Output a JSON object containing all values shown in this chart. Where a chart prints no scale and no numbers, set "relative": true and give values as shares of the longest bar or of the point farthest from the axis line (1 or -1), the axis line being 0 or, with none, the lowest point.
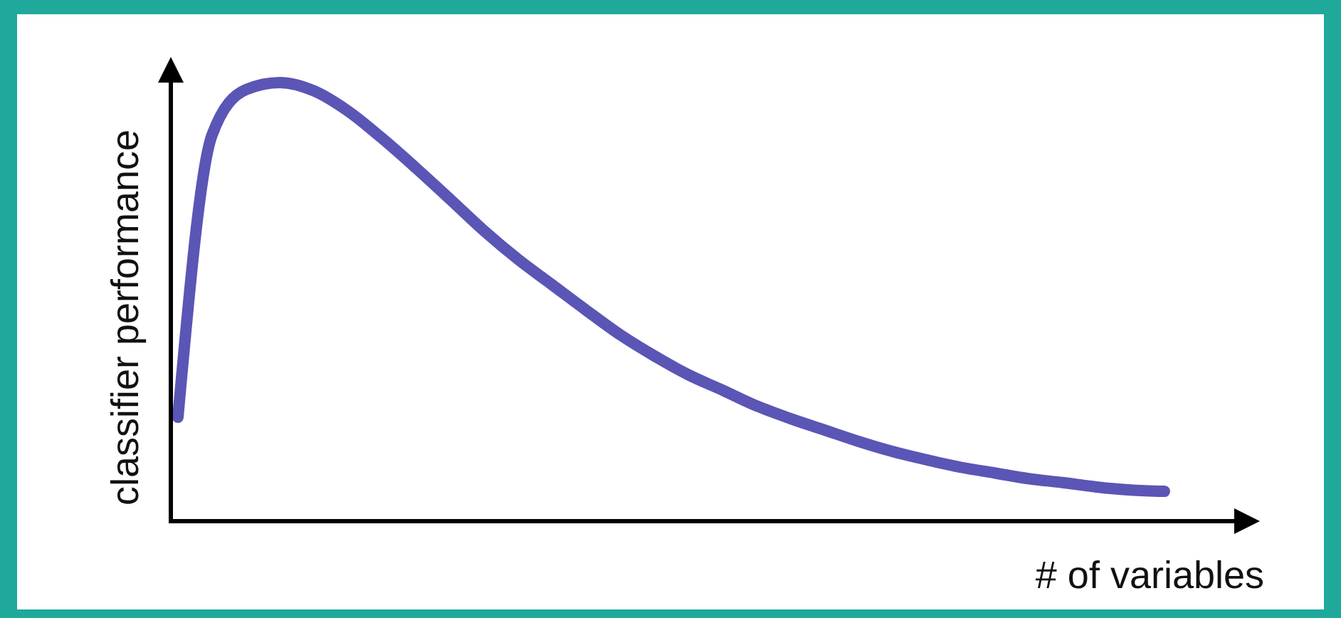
{
  "chart_data": {
    "type": "line",
    "relative": true,
    "xlabel": "# of variables",
    "ylabel": "classifier performance",
    "categories": [
      null,
      null,
      null,
      null,
      null,
      null,
      null,
      null,
      null,
      null,
      null,
      null,
      null,
      null,
      null,
      null,
      null,
      null,
      null,
      null,
      null,
      null,
      null,
      null,
      null,
      null,
      null,
      null,
      null,
      null
    ],
    "series": [
      {
        "color": "#5b55b5",
        "values": [
          0.237,
          0.88,
          0.984,
          1.0,
          0.981,
          0.935,
          0.873,
          0.805,
          0.734,
          0.662,
          0.597,
          0.539,
          0.481,
          0.425,
          0.377,
          0.334,
          0.299,
          0.263,
          0.234,
          0.208,
          0.182,
          0.159,
          0.14,
          0.123,
          0.11,
          0.097,
          0.088,
          0.078,
          0.071,
          0.068
        ]
      }
    ],
    "marker": "none",
    "line_style": "solid"
  }
}
